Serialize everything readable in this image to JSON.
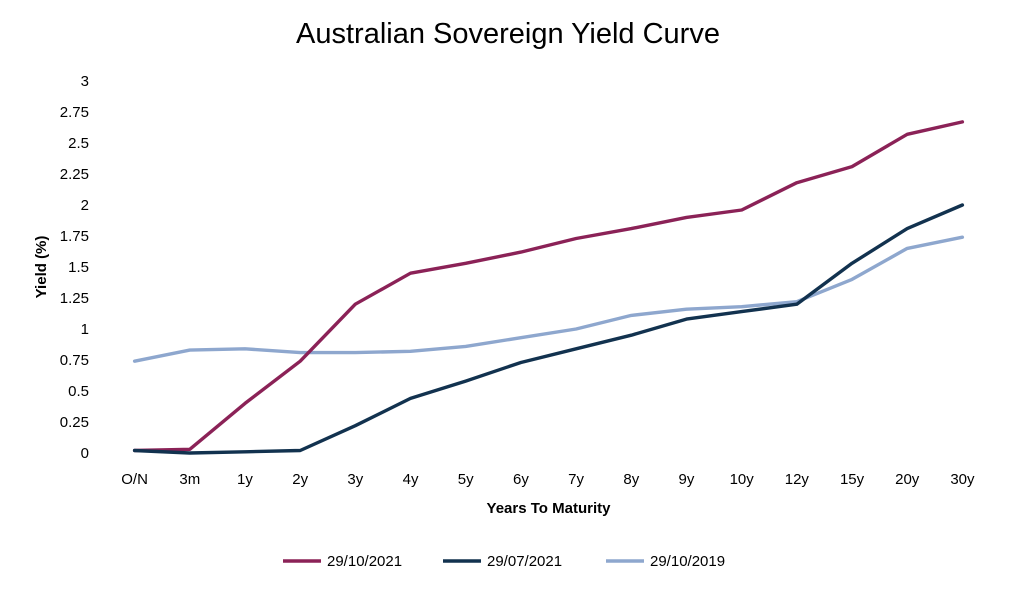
{
  "chart_data": {
    "type": "line",
    "title": "Australian Sovereign Yield Curve",
    "xlabel": "Years To Maturity",
    "ylabel": "Yield (%)",
    "ylim": [
      0,
      3
    ],
    "yticks": [
      "0",
      "0.25",
      "0.5",
      "0.75",
      "1",
      "1.25",
      "1.5",
      "1.75",
      "2",
      "2.25",
      "2.5",
      "2.75",
      "3"
    ],
    "ytick_values": [
      0,
      0.25,
      0.5,
      0.75,
      1,
      1.25,
      1.5,
      1.75,
      2,
      2.25,
      2.5,
      2.75,
      3
    ],
    "categories": [
      "O/N",
      "3m",
      "1y",
      "2y",
      "3y",
      "4y",
      "5y",
      "6y",
      "7y",
      "8y",
      "9y",
      "10y",
      "12y",
      "15y",
      "20y",
      "30y"
    ],
    "grid": false,
    "legend_position": "bottom",
    "series": [
      {
        "name": "29/10/2021",
        "color": "#8B2257",
        "values": [
          0.02,
          0.03,
          0.4,
          0.74,
          1.2,
          1.45,
          1.53,
          1.62,
          1.73,
          1.81,
          1.9,
          1.96,
          2.18,
          2.31,
          2.57,
          2.67
        ]
      },
      {
        "name": "29/07/2021",
        "color": "#12324F",
        "values": [
          0.02,
          0.0,
          0.01,
          0.02,
          0.22,
          0.44,
          0.58,
          0.73,
          0.84,
          0.95,
          1.08,
          1.14,
          1.2,
          1.53,
          1.81,
          2.0
        ]
      },
      {
        "name": "29/10/2019",
        "color": "#8EA7CE",
        "values": [
          0.74,
          0.83,
          0.84,
          0.81,
          0.81,
          0.82,
          0.86,
          0.93,
          1.0,
          1.11,
          1.16,
          1.18,
          1.22,
          1.4,
          1.65,
          1.74
        ]
      }
    ]
  }
}
